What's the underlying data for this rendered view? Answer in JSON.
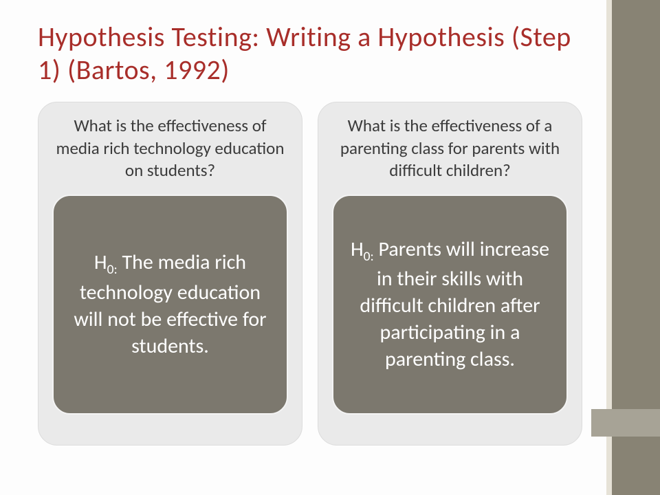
{
  "title": "Hypothesis Testing: Writing a Hypothesis  (Step 1) (Bartos, 1992)",
  "columns": [
    {
      "question": "What is the effectiveness of media rich technology education on students?",
      "h_label": "H",
      "h_sub": "0:",
      "hypothesis": " The media rich technology education will not be effective for students."
    },
    {
      "question": "What is the effectiveness of a parenting class for parents with difficult children?",
      "h_label": "H",
      "h_sub": "0:",
      "hypothesis": " Parents will increase in their skills with difficult children after participating in a parenting class."
    }
  ],
  "colors": {
    "title_color": "#a82e2a",
    "outer_box_bg": "#eaeaea",
    "inner_box_bg": "#7c786e",
    "sidebar_bg": "#888374",
    "sidebar_inner": "#e6e2d7",
    "question_color": "#3b3b3b",
    "hypothesis_color": "#ffffff"
  }
}
